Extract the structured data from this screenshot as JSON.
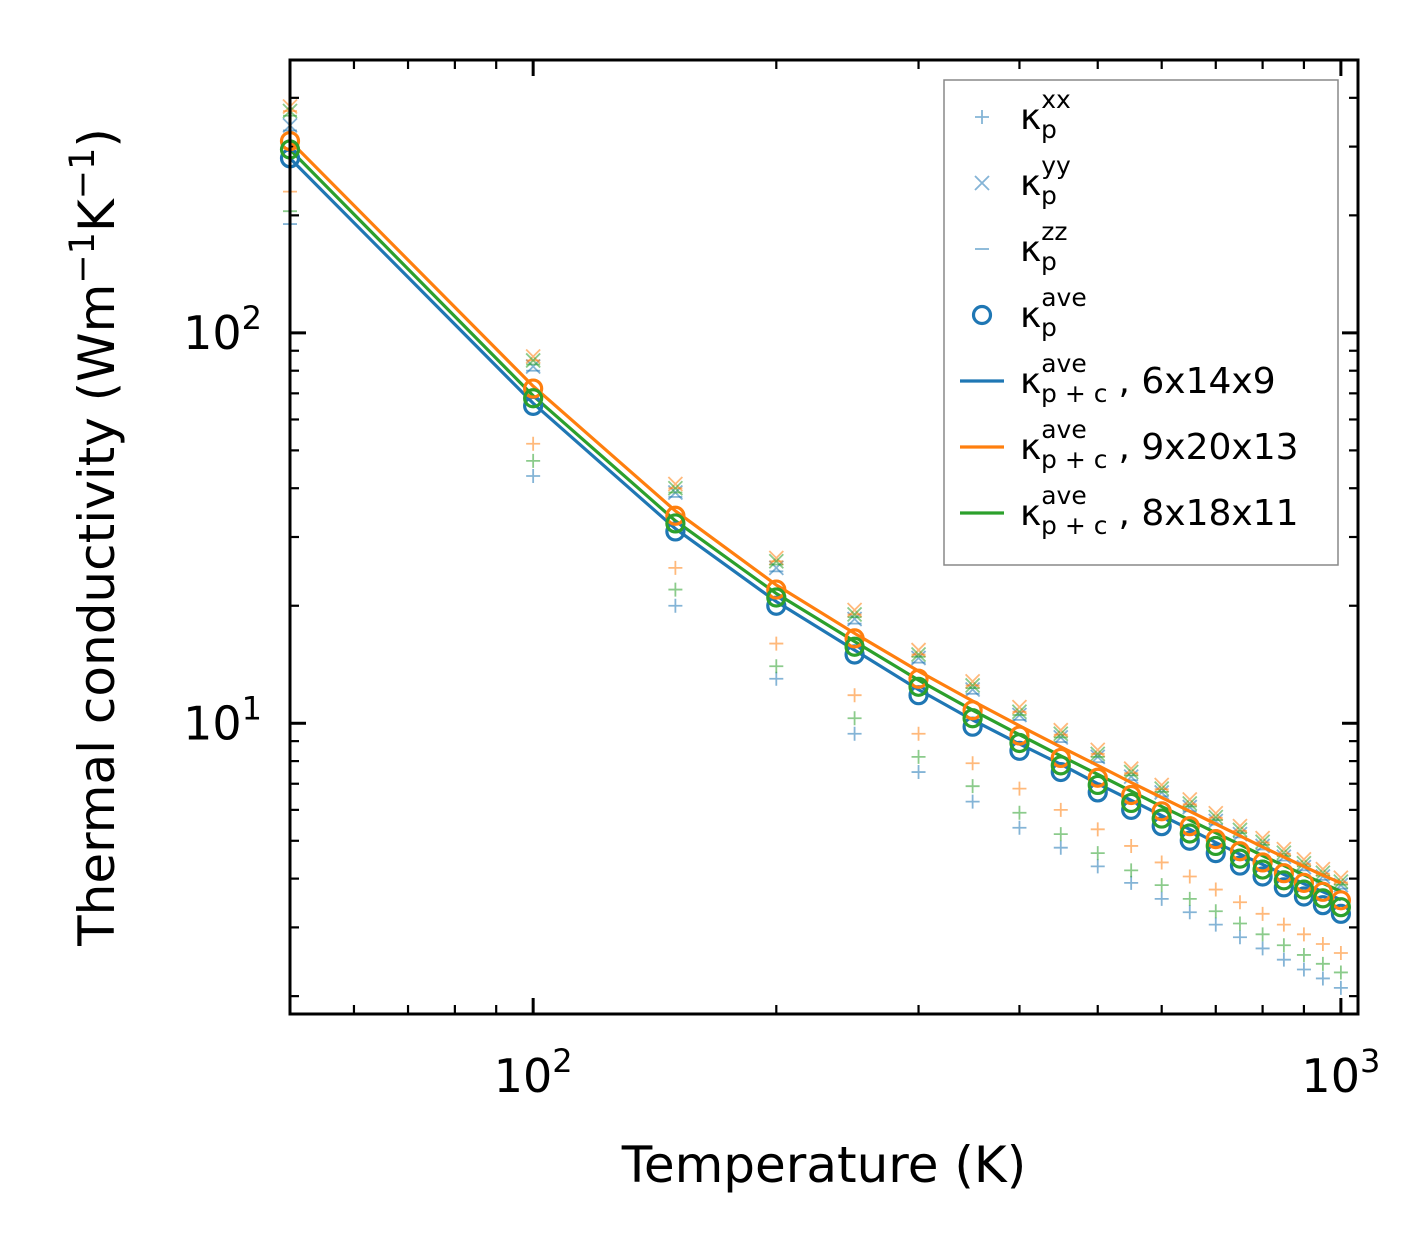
{
  "chart_data": {
    "type": "line",
    "xscale": "log",
    "yscale": "log",
    "xlabel": "Temperature (K)",
    "ylabel": {
      "main": "Thermal conductivity (Wm",
      "sup1": "−1",
      "mid": "K",
      "sup2": "−1",
      "end": ")"
    },
    "xlim": [
      50,
      1050
    ],
    "ylim": [
      1.8,
      500
    ],
    "xticks": [
      {
        "value": 100,
        "base": "10",
        "exp": "2"
      },
      {
        "value": 1000,
        "base": "10",
        "exp": "3"
      }
    ],
    "yticks": [
      {
        "value": 10,
        "base": "10",
        "exp": "1"
      },
      {
        "value": 100,
        "base": "10",
        "exp": "2"
      }
    ],
    "temperatures": [
      50,
      100,
      150,
      200,
      250,
      300,
      350,
      400,
      450,
      500,
      550,
      600,
      650,
      700,
      750,
      800,
      850,
      900,
      950,
      1000
    ],
    "colors": {
      "blue": "#1f77b4",
      "orange": "#ff7f0e",
      "green": "#2ca02c"
    },
    "series": [
      {
        "name": "6x14x9",
        "color": "#1f77b4",
        "kxx": [
          190,
          43,
          20,
          13.0,
          9.4,
          7.5,
          6.3,
          5.4,
          4.8,
          4.3,
          3.9,
          3.55,
          3.28,
          3.05,
          2.83,
          2.65,
          2.48,
          2.34,
          2.22,
          2.1
        ],
        "kyy": [
          340,
          82,
          39,
          25.0,
          18.5,
          14.7,
          12.2,
          10.5,
          9.2,
          8.2,
          7.3,
          6.65,
          6.1,
          5.62,
          5.2,
          4.85,
          4.55,
          4.28,
          4.05,
          3.85
        ],
        "kzz": [
          330,
          80,
          38,
          24.5,
          18.0,
          14.3,
          11.9,
          10.2,
          8.95,
          7.95,
          7.15,
          6.5,
          5.95,
          5.5,
          5.1,
          4.75,
          4.45,
          4.2,
          3.97,
          3.77
        ],
        "kave": [
          280,
          65,
          31,
          20.0,
          15.0,
          11.8,
          9.8,
          8.5,
          7.5,
          6.65,
          6.0,
          5.45,
          5.0,
          4.65,
          4.32,
          4.05,
          3.8,
          3.6,
          3.42,
          3.25
        ],
        "kpc": [
          280,
          66,
          31.5,
          20.5,
          15.4,
          12.2,
          10.2,
          8.85,
          7.85,
          7.0,
          6.35,
          5.8,
          5.35,
          4.95,
          4.62,
          4.35,
          4.1,
          3.88,
          3.7,
          3.53
        ]
      },
      {
        "name": "9x20x13",
        "color": "#ff7f0e",
        "kxx": [
          230,
          52,
          25,
          16.0,
          11.8,
          9.4,
          7.9,
          6.8,
          6.0,
          5.35,
          4.85,
          4.4,
          4.05,
          3.75,
          3.48,
          3.25,
          3.05,
          2.88,
          2.72,
          2.58
        ],
        "kyy": [
          380,
          87,
          41,
          26.5,
          19.5,
          15.4,
          12.8,
          11.0,
          9.6,
          8.55,
          7.65,
          6.95,
          6.38,
          5.88,
          5.45,
          5.08,
          4.76,
          4.48,
          4.23,
          4.02
        ],
        "kzz": [
          370,
          85,
          40,
          26.0,
          19.0,
          15.0,
          12.5,
          10.7,
          9.35,
          8.35,
          7.45,
          6.78,
          6.2,
          5.73,
          5.3,
          4.95,
          4.63,
          4.36,
          4.12,
          3.91
        ],
        "kave": [
          310,
          72,
          34,
          22.0,
          16.5,
          13.0,
          10.8,
          9.3,
          8.15,
          7.25,
          6.55,
          5.95,
          5.45,
          5.05,
          4.7,
          4.4,
          4.13,
          3.9,
          3.7,
          3.52
        ],
        "kpc": [
          310,
          73,
          35,
          22.6,
          17.0,
          13.6,
          11.4,
          9.85,
          8.7,
          7.8,
          7.05,
          6.45,
          5.95,
          5.52,
          5.15,
          4.82,
          4.54,
          4.3,
          4.08,
          3.9
        ]
      },
      {
        "name": "8x18x11",
        "color": "#2ca02c",
        "kxx": [
          205,
          47,
          22,
          14.0,
          10.3,
          8.2,
          6.9,
          5.9,
          5.2,
          4.65,
          4.2,
          3.85,
          3.55,
          3.3,
          3.07,
          2.88,
          2.7,
          2.55,
          2.42,
          2.3
        ],
        "kyy": [
          370,
          85,
          40,
          26.0,
          19.0,
          15.0,
          12.5,
          10.7,
          9.4,
          8.35,
          7.5,
          6.8,
          6.23,
          5.75,
          5.33,
          4.97,
          4.66,
          4.38,
          4.14,
          3.93
        ],
        "kzz": [
          360,
          83,
          39,
          25.5,
          18.7,
          14.8,
          12.3,
          10.5,
          9.2,
          8.2,
          7.35,
          6.67,
          6.12,
          5.65,
          5.23,
          4.88,
          4.57,
          4.3,
          4.07,
          3.86
        ],
        "kave": [
          295,
          68,
          32.5,
          21.0,
          15.7,
          12.4,
          10.3,
          8.9,
          7.8,
          6.95,
          6.25,
          5.7,
          5.22,
          4.85,
          4.5,
          4.22,
          3.96,
          3.75,
          3.56,
          3.38
        ],
        "kpc": [
          295,
          69,
          33,
          21.5,
          16.2,
          12.9,
          10.8,
          9.35,
          8.25,
          7.4,
          6.7,
          6.12,
          5.65,
          5.24,
          4.89,
          4.58,
          4.32,
          4.09,
          3.89,
          3.71
        ]
      }
    ],
    "legend": {
      "position": "top-right",
      "base": "κ",
      "entries": [
        {
          "marker": "plus",
          "color": "#1f77b4",
          "sub": "p",
          "sup": "xx",
          "suffix": ""
        },
        {
          "marker": "x",
          "color": "#1f77b4",
          "sub": "p",
          "sup": "yy",
          "suffix": ""
        },
        {
          "marker": "dash",
          "color": "#1f77b4",
          "sub": "p",
          "sup": "zz",
          "suffix": ""
        },
        {
          "marker": "circle",
          "color": "#1f77b4",
          "sub": "p",
          "sup": "ave",
          "suffix": ""
        },
        {
          "marker": "line",
          "color": "#1f77b4",
          "sub": "p + c",
          "sup": "ave",
          "suffix": ", 6x14x9"
        },
        {
          "marker": "line",
          "color": "#ff7f0e",
          "sub": "p + c",
          "sup": "ave",
          "suffix": ", 9x20x13"
        },
        {
          "marker": "line",
          "color": "#2ca02c",
          "sub": "p + c",
          "sup": "ave",
          "suffix": ", 8x18x11"
        }
      ]
    }
  }
}
